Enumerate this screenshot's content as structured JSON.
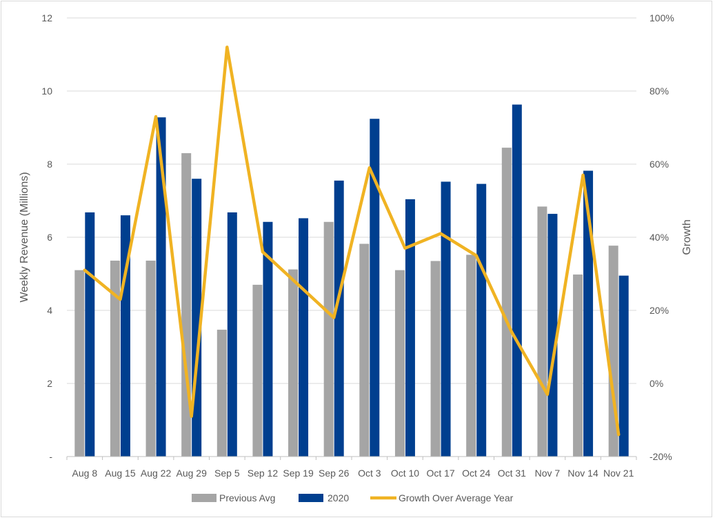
{
  "chart_data": {
    "type": "bar",
    "title": "",
    "categories": [
      "Aug 8",
      "Aug 15",
      "Aug 22",
      "Aug 29",
      "Sep 5",
      "Sep 12",
      "Sep 19",
      "Sep 26",
      "Oct 3",
      "Oct 10",
      "Oct 17",
      "Oct 24",
      "Oct 31",
      "Nov 7",
      "Nov 14",
      "Nov 21"
    ],
    "series": [
      {
        "name": "Previous Avg",
        "type": "bar",
        "axis": "left",
        "color": "#A5A5A5",
        "values": [
          5.1,
          5.36,
          5.36,
          8.3,
          3.47,
          4.7,
          5.12,
          6.42,
          5.82,
          5.1,
          5.35,
          5.52,
          8.45,
          6.84,
          4.98,
          5.77
        ]
      },
      {
        "name": "2020",
        "type": "bar",
        "axis": "left",
        "color": "#003F8F",
        "values": [
          6.68,
          6.6,
          9.28,
          7.6,
          6.68,
          6.42,
          6.52,
          7.55,
          9.24,
          7.04,
          7.52,
          7.46,
          9.63,
          6.64,
          7.82,
          4.95
        ]
      },
      {
        "name": "Growth Over Average Year",
        "type": "line",
        "axis": "right",
        "color": "#F0B323",
        "values": [
          0.31,
          0.23,
          0.73,
          -0.09,
          0.92,
          0.36,
          0.27,
          0.18,
          0.59,
          0.37,
          0.41,
          0.35,
          0.14,
          -0.03,
          0.57,
          -0.14
        ]
      }
    ],
    "y_left": {
      "label": "Weekly Revenue (Millions)",
      "ylim": [
        0,
        12
      ],
      "ticks": [
        "-",
        "2",
        "4",
        "6",
        "8",
        "10",
        "12"
      ],
      "tick_values": [
        0,
        2,
        4,
        6,
        8,
        10,
        12
      ]
    },
    "y_right": {
      "label": "Growth",
      "ylim": [
        -0.2,
        1.0
      ],
      "ticks": [
        "-20%",
        "0%",
        "20%",
        "40%",
        "60%",
        "80%",
        "100%"
      ],
      "tick_values": [
        -0.2,
        0,
        0.2,
        0.4,
        0.6,
        0.8,
        1.0
      ]
    },
    "grid": true,
    "legend_position": "bottom"
  }
}
